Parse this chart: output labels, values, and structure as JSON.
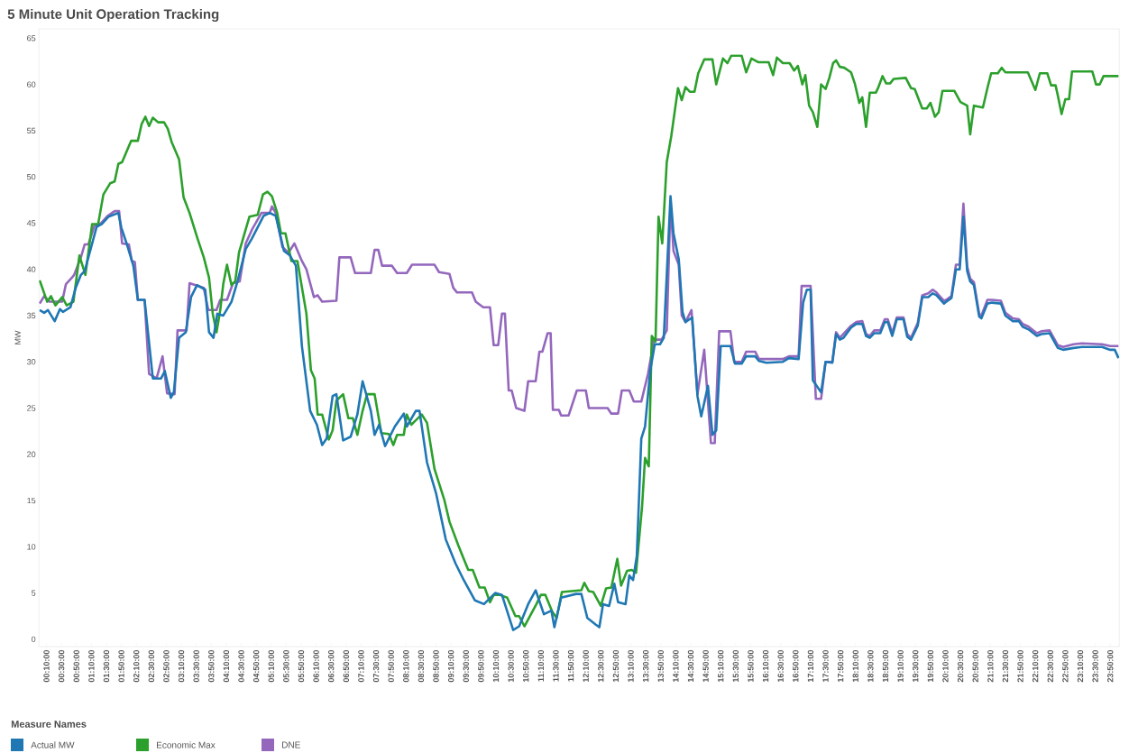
{
  "chart_data": {
    "type": "line",
    "title": "5 Minute Unit Operation Tracking",
    "ylabel": "MW",
    "legend_title": "Measure Names",
    "legend": "bottom",
    "line_style": "solid",
    "xlim": [
      0,
      1442
    ],
    "ylim": [
      -0.8,
      66
    ],
    "yticks": [
      0,
      5,
      10,
      15,
      20,
      25,
      30,
      35,
      40,
      45,
      50,
      55,
      60,
      65
    ],
    "xticks": [
      {
        "value": 10,
        "label": "00:10:00"
      },
      {
        "value": 30,
        "label": "00:30:00"
      },
      {
        "value": 50,
        "label": "00:50:00"
      },
      {
        "value": 70,
        "label": "01:10:00"
      },
      {
        "value": 90,
        "label": "01:30:00"
      },
      {
        "value": 110,
        "label": "01:50:00"
      },
      {
        "value": 130,
        "label": "02:10:00"
      },
      {
        "value": 150,
        "label": "02:30:00"
      },
      {
        "value": 170,
        "label": "02:50:00"
      },
      {
        "value": 190,
        "label": "03:10:00"
      },
      {
        "value": 210,
        "label": "03:30:00"
      },
      {
        "value": 230,
        "label": "03:50:00"
      },
      {
        "value": 250,
        "label": "04:10:00"
      },
      {
        "value": 270,
        "label": "04:30:00"
      },
      {
        "value": 290,
        "label": "04:50:00"
      },
      {
        "value": 310,
        "label": "05:10:00"
      },
      {
        "value": 330,
        "label": "05:30:00"
      },
      {
        "value": 350,
        "label": "05:50:00"
      },
      {
        "value": 370,
        "label": "06:10:00"
      },
      {
        "value": 390,
        "label": "06:30:00"
      },
      {
        "value": 410,
        "label": "06:50:00"
      },
      {
        "value": 430,
        "label": "07:10:00"
      },
      {
        "value": 450,
        "label": "07:30:00"
      },
      {
        "value": 470,
        "label": "07:50:00"
      },
      {
        "value": 490,
        "label": "08:10:00"
      },
      {
        "value": 510,
        "label": "08:30:00"
      },
      {
        "value": 530,
        "label": "08:50:00"
      },
      {
        "value": 550,
        "label": "09:10:00"
      },
      {
        "value": 570,
        "label": "09:30:00"
      },
      {
        "value": 590,
        "label": "09:50:00"
      },
      {
        "value": 610,
        "label": "10:10:00"
      },
      {
        "value": 630,
        "label": "10:30:00"
      },
      {
        "value": 650,
        "label": "10:50:00"
      },
      {
        "value": 670,
        "label": "11:10:00"
      },
      {
        "value": 690,
        "label": "11:30:00"
      },
      {
        "value": 710,
        "label": "11:50:00"
      },
      {
        "value": 730,
        "label": "12:10:00"
      },
      {
        "value": 750,
        "label": "12:30:00"
      },
      {
        "value": 770,
        "label": "12:50:00"
      },
      {
        "value": 790,
        "label": "13:10:00"
      },
      {
        "value": 810,
        "label": "13:30:00"
      },
      {
        "value": 830,
        "label": "13:50:00"
      },
      {
        "value": 850,
        "label": "14:10:00"
      },
      {
        "value": 870,
        "label": "14:30:00"
      },
      {
        "value": 890,
        "label": "14:50:00"
      },
      {
        "value": 910,
        "label": "15:10:00"
      },
      {
        "value": 930,
        "label": "15:30:00"
      },
      {
        "value": 950,
        "label": "15:50:00"
      },
      {
        "value": 970,
        "label": "16:10:00"
      },
      {
        "value": 990,
        "label": "16:30:00"
      },
      {
        "value": 1010,
        "label": "16:50:00"
      },
      {
        "value": 1030,
        "label": "17:10:00"
      },
      {
        "value": 1050,
        "label": "17:30:00"
      },
      {
        "value": 1070,
        "label": "17:50:00"
      },
      {
        "value": 1090,
        "label": "18:10:00"
      },
      {
        "value": 1110,
        "label": "18:30:00"
      },
      {
        "value": 1130,
        "label": "18:50:00"
      },
      {
        "value": 1150,
        "label": "19:10:00"
      },
      {
        "value": 1170,
        "label": "19:30:00"
      },
      {
        "value": 1190,
        "label": "19:50:00"
      },
      {
        "value": 1210,
        "label": "20:10:00"
      },
      {
        "value": 1230,
        "label": "20:30:00"
      },
      {
        "value": 1250,
        "label": "20:50:00"
      },
      {
        "value": 1270,
        "label": "21:10:00"
      },
      {
        "value": 1290,
        "label": "21:30:00"
      },
      {
        "value": 1310,
        "label": "21:50:00"
      },
      {
        "value": 1330,
        "label": "22:10:00"
      },
      {
        "value": 1350,
        "label": "22:30:00"
      },
      {
        "value": 1370,
        "label": "22:50:00"
      },
      {
        "value": 1390,
        "label": "23:10:00"
      },
      {
        "value": 1410,
        "label": "23:30:00"
      },
      {
        "value": 1430,
        "label": "23:50:00"
      }
    ],
    "series": [
      {
        "name": "Actual MW",
        "color": "#1f77b4",
        "x": [
          1,
          7,
          12,
          21,
          28,
          32,
          42,
          49,
          56,
          61,
          69,
          77,
          84,
          93,
          106,
          110,
          117,
          126,
          132,
          141,
          152,
          163,
          168,
          176,
          180,
          187,
          196,
          203,
          211,
          222,
          227,
          233,
          238,
          246,
          257,
          265,
          276,
          284,
          300,
          308,
          316,
          327,
          335,
          343,
          351,
          362,
          371,
          378,
          384,
          392,
          397,
          406,
          416,
          425,
          432,
          443,
          448,
          454,
          462,
          475,
          487,
          491,
          503,
          508,
          518,
          530,
          543,
          556,
          567,
          582,
          594,
          609,
          618,
          633,
          641,
          653,
          663,
          674,
          684,
          688,
          697,
          717,
          724,
          732,
          743,
          748,
          753,
          761,
          768,
          773,
          783,
          788,
          793,
          798,
          804,
          809,
          816,
          822,
          829,
          834,
          843,
          847,
          854,
          859,
          863,
          872,
          879,
          884,
          893,
          899,
          904,
          910,
          923,
          929,
          938,
          944,
          956,
          961,
          971,
          993,
          1001,
          1014,
          1020,
          1025,
          1030,
          1033,
          1044,
          1050,
          1059,
          1064,
          1069,
          1074,
          1084,
          1091,
          1099,
          1104,
          1109,
          1115,
          1123,
          1129,
          1133,
          1139,
          1145,
          1154,
          1159,
          1164,
          1173,
          1179,
          1187,
          1193,
          1198,
          1208,
          1211,
          1218,
          1224,
          1229,
          1234,
          1239,
          1243,
          1248,
          1255,
          1258,
          1266,
          1272,
          1284,
          1290,
          1300,
          1308,
          1313,
          1321,
          1332,
          1338,
          1349,
          1360,
          1367,
          1381,
          1392,
          1419,
          1430,
          1436,
          1441
        ],
        "values": [
          35.6,
          35.3,
          35.6,
          34.4,
          35.7,
          35.4,
          35.9,
          38.0,
          39.4,
          39.8,
          42.2,
          44.6,
          44.9,
          45.7,
          46.1,
          44.5,
          42.8,
          40.4,
          36.7,
          36.7,
          28.2,
          28.2,
          29.0,
          26.1,
          26.7,
          32.6,
          33.2,
          37.0,
          38.3,
          37.8,
          33.2,
          32.6,
          35.2,
          35.0,
          36.5,
          38.7,
          42.2,
          43.3,
          45.8,
          46.1,
          45.8,
          42.0,
          41.5,
          40.4,
          31.7,
          24.7,
          23.2,
          21.0,
          21.7,
          26.3,
          26.5,
          21.5,
          21.9,
          24.3,
          27.9,
          24.7,
          22.1,
          23.2,
          20.9,
          23.0,
          24.4,
          23.0,
          24.7,
          24.7,
          19.1,
          15.8,
          10.8,
          8.2,
          6.4,
          4.2,
          3.8,
          5.0,
          4.8,
          1.0,
          1.4,
          3.8,
          5.3,
          2.7,
          3.1,
          1.3,
          4.5,
          4.9,
          4.9,
          2.3,
          1.6,
          1.3,
          3.8,
          3.6,
          6.0,
          4.0,
          3.8,
          6.9,
          6.4,
          9.0,
          21.7,
          23.0,
          29.1,
          31.9,
          31.9,
          32.6,
          47.9,
          43.9,
          41.1,
          35.4,
          34.3,
          34.8,
          26.3,
          24.1,
          27.4,
          22.1,
          22.6,
          31.7,
          31.7,
          29.8,
          29.8,
          30.6,
          30.6,
          30.1,
          29.9,
          30.0,
          30.4,
          30.3,
          36.4,
          37.8,
          37.8,
          28.0,
          26.7,
          30.0,
          29.9,
          33.0,
          32.4,
          32.6,
          33.7,
          34.1,
          34.1,
          32.8,
          32.6,
          33.1,
          33.1,
          34.3,
          34.3,
          32.8,
          34.6,
          34.6,
          32.7,
          32.4,
          33.9,
          37.0,
          37.0,
          37.4,
          37.2,
          36.3,
          36.5,
          36.9,
          40.0,
          40.0,
          45.7,
          39.8,
          38.7,
          38.3,
          34.9,
          34.7,
          36.3,
          36.4,
          36.3,
          35.0,
          34.4,
          34.4,
          33.8,
          33.5,
          32.8,
          33.0,
          33.1,
          31.5,
          31.3,
          31.5,
          31.6,
          31.6,
          31.3,
          31.3,
          30.4
        ]
      },
      {
        "name": "Economic Max",
        "color": "#2ca02c",
        "x": [
          1,
          11,
          16,
          22,
          31,
          37,
          46,
          54,
          62,
          71,
          79,
          86,
          95,
          101,
          106,
          111,
          123,
          132,
          137,
          142,
          147,
          152,
          159,
          167,
          172,
          177,
          187,
          193,
          201,
          211,
          220,
          227,
          232,
          237,
          242,
          246,
          251,
          257,
          262,
          267,
          273,
          281,
          292,
          299,
          305,
          311,
          318,
          323,
          329,
          337,
          345,
          357,
          363,
          368,
          372,
          378,
          387,
          392,
          397,
          406,
          413,
          419,
          425,
          432,
          438,
          448,
          457,
          467,
          473,
          478,
          487,
          491,
          497,
          502,
          511,
          518,
          528,
          541,
          548,
          560,
          573,
          579,
          588,
          595,
          602,
          607,
          615,
          625,
          636,
          641,
          648,
          664,
          670,
          676,
          685,
          691,
          698,
          724,
          728,
          734,
          740,
          750,
          757,
          764,
          772,
          777,
          785,
          791,
          797,
          805,
          809,
          814,
          818,
          823,
          827,
          832,
          838,
          844,
          853,
          858,
          863,
          869,
          875,
          880,
          888,
          899,
          904,
          913,
          919,
          924,
          938,
          944,
          951,
          960,
          974,
          980,
          985,
          993,
          1002,
          1008,
          1013,
          1019,
          1023,
          1028,
          1033,
          1039,
          1044,
          1050,
          1055,
          1060,
          1064,
          1069,
          1075,
          1084,
          1089,
          1095,
          1099,
          1104,
          1109,
          1117,
          1120,
          1126,
          1131,
          1136,
          1141,
          1157,
          1164,
          1169,
          1179,
          1185,
          1190,
          1196,
          1201,
          1206,
          1222,
          1230,
          1239,
          1243,
          1248,
          1260,
          1266,
          1271,
          1280,
          1285,
          1290,
          1320,
          1330,
          1336,
          1346,
          1351,
          1357,
          1360,
          1365,
          1370,
          1375,
          1379,
          1406,
          1411,
          1416,
          1421,
          1441
        ],
        "values": [
          38.8,
          36.5,
          37.1,
          36.1,
          37.0,
          36.1,
          36.5,
          41.5,
          39.4,
          44.9,
          44.9,
          48.1,
          49.3,
          49.5,
          51.4,
          51.6,
          53.9,
          53.9,
          55.7,
          56.5,
          55.5,
          56.4,
          55.9,
          55.9,
          55.2,
          53.8,
          51.9,
          47.8,
          46.1,
          43.5,
          41.3,
          39.1,
          35.2,
          33.2,
          35.6,
          38.4,
          40.5,
          38.3,
          38.7,
          41.8,
          43.5,
          45.7,
          45.9,
          48.1,
          48.4,
          47.9,
          46.1,
          43.9,
          43.9,
          40.9,
          40.9,
          35.2,
          29.1,
          28.2,
          24.3,
          24.3,
          21.6,
          22.6,
          25.8,
          26.5,
          23.9,
          23.9,
          22.1,
          24.7,
          26.5,
          26.5,
          22.3,
          22.2,
          21.0,
          22.1,
          22.1,
          24.3,
          23.2,
          23.6,
          24.3,
          23.4,
          18.4,
          15.1,
          12.7,
          10.1,
          7.5,
          7.5,
          5.6,
          5.6,
          4.0,
          4.8,
          4.8,
          4.5,
          2.5,
          2.5,
          1.4,
          3.8,
          4.8,
          4.8,
          3.0,
          2.3,
          5.1,
          5.3,
          6.1,
          5.2,
          5.1,
          3.6,
          5.5,
          5.6,
          8.7,
          5.8,
          7.4,
          7.5,
          7.2,
          14.3,
          19.6,
          18.7,
          32.8,
          32.2,
          45.7,
          42.8,
          51.6,
          54.4,
          59.6,
          58.3,
          59.7,
          59.2,
          59.2,
          61.2,
          62.7,
          62.7,
          60.0,
          62.8,
          62.3,
          63.1,
          63.1,
          61.3,
          62.8,
          62.4,
          62.4,
          61.0,
          62.9,
          62.3,
          62.3,
          61.5,
          62.0,
          60.0,
          61.0,
          57.7,
          57.0,
          55.4,
          60.0,
          59.5,
          60.7,
          62.3,
          62.6,
          61.9,
          61.8,
          61.3,
          60.1,
          58.0,
          58.6,
          55.4,
          59.1,
          59.1,
          59.6,
          60.9,
          60.1,
          60.1,
          60.6,
          60.7,
          59.6,
          59.5,
          57.4,
          57.4,
          58.0,
          56.5,
          57.0,
          59.3,
          59.3,
          58.1,
          57.7,
          54.6,
          57.7,
          57.5,
          59.6,
          61.2,
          61.2,
          61.8,
          61.3,
          61.3,
          59.4,
          61.2,
          61.2,
          59.9,
          59.9,
          58.8,
          56.8,
          58.4,
          58.4,
          61.4,
          61.4,
          60.0,
          60.0,
          60.9,
          60.9
        ]
      },
      {
        "name": "DNE",
        "color": "#9467bd",
        "x": [
          1,
          7,
          14,
          31,
          36,
          44,
          47,
          56,
          61,
          66,
          74,
          83,
          92,
          101,
          107,
          111,
          120,
          124,
          128,
          132,
          141,
          147,
          157,
          165,
          171,
          181,
          185,
          197,
          201,
          220,
          226,
          237,
          242,
          251,
          259,
          268,
          276,
          285,
          297,
          308,
          311,
          316,
          325,
          333,
          341,
          351,
          357,
          367,
          372,
          378,
          397,
          401,
          416,
          422,
          443,
          448,
          453,
          458,
          471,
          478,
          491,
          498,
          528,
          534,
          548,
          553,
          558,
          578,
          583,
          593,
          602,
          607,
          613,
          618,
          622,
          627,
          631,
          637,
          648,
          653,
          663,
          668,
          672,
          679,
          683,
          686,
          694,
          697,
          707,
          718,
          730,
          734,
          759,
          764,
          773,
          778,
          788,
          794,
          804,
          813,
          821,
          831,
          838,
          843,
          847,
          854,
          858,
          863,
          871,
          879,
          888,
          897,
          902,
          908,
          923,
          928,
          938,
          944,
          956,
          961,
          993,
          1001,
          1014,
          1018,
          1030,
          1037,
          1044,
          1050,
          1059,
          1064,
          1069,
          1084,
          1091,
          1099,
          1104,
          1109,
          1115,
          1123,
          1129,
          1133,
          1139,
          1145,
          1154,
          1159,
          1164,
          1173,
          1179,
          1187,
          1193,
          1198,
          1208,
          1211,
          1218,
          1224,
          1229,
          1234,
          1239,
          1243,
          1248,
          1255,
          1258,
          1266,
          1272,
          1284,
          1290,
          1300,
          1308,
          1313,
          1321,
          1332,
          1338,
          1349,
          1360,
          1367,
          1381,
          1392,
          1419,
          1430,
          1441
        ],
        "values": [
          36.3,
          37.1,
          36.5,
          36.5,
          38.4,
          39.1,
          39.4,
          41.3,
          42.7,
          42.7,
          44.7,
          45.0,
          45.8,
          46.3,
          46.3,
          42.8,
          42.7,
          40.9,
          40.8,
          36.7,
          36.7,
          28.7,
          28.2,
          30.6,
          26.6,
          26.5,
          33.4,
          33.4,
          38.5,
          38.0,
          35.6,
          35.6,
          36.7,
          36.7,
          38.5,
          38.7,
          42.8,
          44.4,
          46.1,
          46.1,
          46.8,
          46.1,
          42.4,
          41.8,
          42.8,
          40.9,
          40.0,
          37.0,
          37.2,
          36.5,
          36.6,
          41.3,
          41.3,
          39.6,
          39.6,
          42.1,
          42.1,
          40.4,
          40.4,
          39.6,
          39.6,
          40.5,
          40.5,
          39.7,
          39.5,
          38.0,
          37.5,
          37.5,
          36.5,
          35.9,
          35.9,
          31.8,
          31.8,
          35.2,
          35.2,
          26.9,
          26.9,
          25.0,
          24.7,
          27.9,
          27.9,
          31.1,
          31.1,
          33.1,
          33.1,
          24.8,
          24.8,
          24.2,
          24.2,
          26.9,
          26.9,
          25.0,
          25.0,
          24.4,
          24.4,
          26.9,
          26.9,
          25.7,
          25.7,
          28.7,
          32.4,
          32.4,
          33.4,
          47.3,
          42.0,
          40.5,
          35.0,
          34.3,
          35.6,
          26.5,
          31.3,
          21.2,
          21.2,
          33.3,
          33.3,
          30.0,
          30.0,
          31.1,
          31.1,
          30.3,
          30.3,
          30.6,
          30.6,
          38.2,
          38.2,
          26.0,
          26.0,
          30.0,
          30.0,
          33.2,
          32.6,
          33.9,
          34.3,
          34.4,
          33.0,
          32.8,
          33.4,
          33.4,
          34.6,
          34.6,
          33.1,
          34.8,
          34.8,
          33.0,
          32.6,
          34.2,
          37.2,
          37.4,
          37.8,
          37.5,
          36.6,
          36.7,
          37.1,
          40.5,
          40.5,
          47.1,
          40.3,
          39.0,
          38.6,
          35.2,
          35.0,
          36.7,
          36.7,
          36.6,
          35.3,
          34.7,
          34.6,
          34.1,
          33.8,
          33.1,
          33.3,
          33.4,
          31.8,
          31.6,
          31.9,
          32.0,
          31.9,
          31.7,
          31.7
        ]
      }
    ]
  }
}
